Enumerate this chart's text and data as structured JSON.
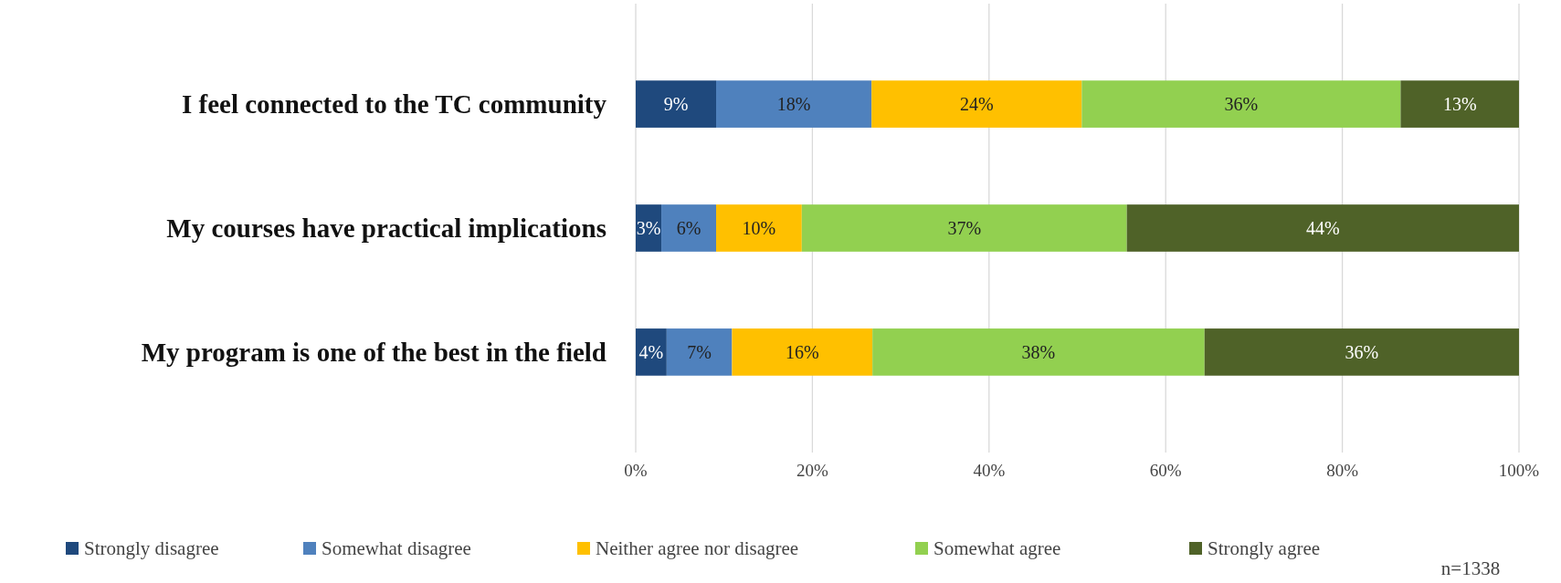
{
  "chart_data": {
    "type": "bar",
    "orientation": "horizontal",
    "stacked": true,
    "categories": [
      "I feel connected to the TC community",
      "My courses have practical implications",
      "My program is one of the best in the field"
    ],
    "series": [
      {
        "name": "Strongly disagree",
        "color": "#1f497d",
        "values": [
          9.1,
          2.9,
          3.5
        ],
        "value_labels": [
          "9%",
          "3%",
          "4%"
        ]
      },
      {
        "name": "Somewhat disagree",
        "color": "#4f81bd",
        "values": [
          17.6,
          6.2,
          7.4
        ],
        "value_labels": [
          "18%",
          "6%",
          "7%"
        ]
      },
      {
        "name": "Neither agree nor disagree",
        "color": "#ffc000",
        "values": [
          23.8,
          9.7,
          15.9
        ],
        "value_labels": [
          "24%",
          "10%",
          "16%"
        ]
      },
      {
        "name": "Somewhat agree",
        "color": "#92d050",
        "values": [
          36.1,
          36.8,
          37.6
        ],
        "value_labels": [
          "36%",
          "37%",
          "38%"
        ]
      },
      {
        "name": "Strongly agree",
        "color": "#4f6228",
        "values": [
          13.4,
          44.4,
          35.6
        ],
        "value_labels": [
          "13%",
          "44%",
          "36%"
        ]
      }
    ],
    "xlim": [
      0,
      100
    ],
    "xticks": [
      {
        "value": 0,
        "label": "0%"
      },
      {
        "value": 20,
        "label": "20%"
      },
      {
        "value": 40,
        "label": "40%"
      },
      {
        "value": 60,
        "label": "60%"
      },
      {
        "value": 80,
        "label": "80%"
      },
      {
        "value": 100,
        "label": "100%"
      }
    ],
    "grid": "x",
    "legend": "bottom",
    "annotations": [
      "n=1338"
    ]
  }
}
